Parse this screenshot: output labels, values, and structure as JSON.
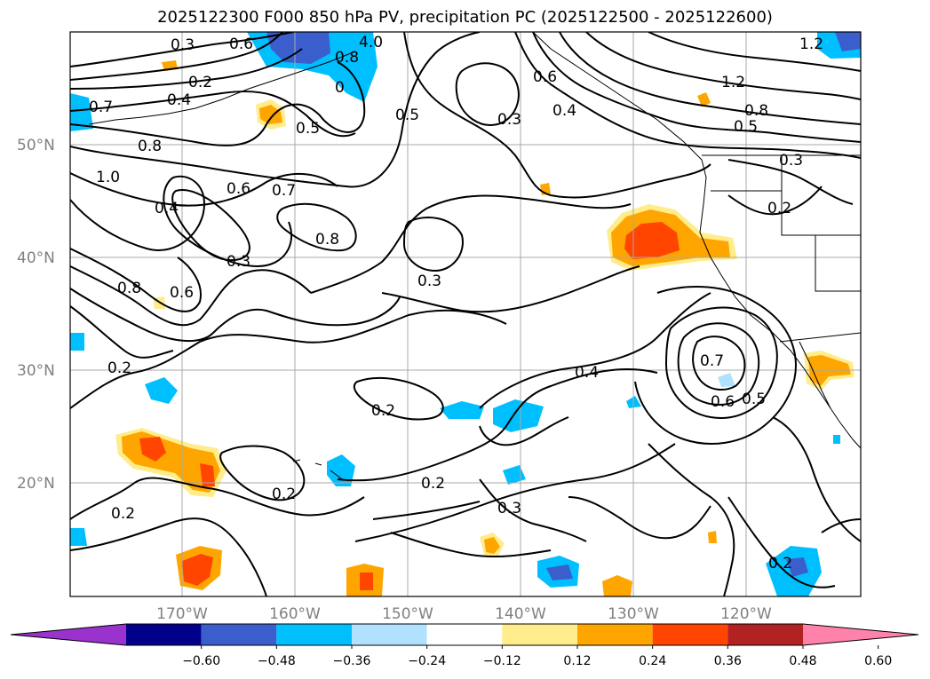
{
  "title": "2025122300 F000 850 hPa PV, precipitation PC (2025122500 - 2025122600)",
  "latitude_labels": [
    "50°N",
    "40°N",
    "30°N",
    "20°N"
  ],
  "longitude_labels": [
    "170°W",
    "160°W",
    "150°W",
    "140°W",
    "130°W",
    "120°W"
  ],
  "contour_labels": [
    "0.3",
    "0.2",
    "0.6",
    "4.0",
    "0.8",
    "0",
    "0.7",
    "0.4",
    "0.5",
    "0.8",
    "1.0",
    "0.6",
    "0.7",
    "0.4",
    "0.8",
    "0.3",
    "0.8",
    "0.6",
    "0.2",
    "0.3",
    "0.5",
    "0.3",
    "0.6",
    "0.4",
    "1.2",
    "1.2",
    "0.8",
    "0.5",
    "0.3",
    "0.2",
    "0.4",
    "0.2",
    "0.2",
    "0.3",
    "0.2",
    "0.7",
    "0.6",
    "0.5",
    "0.2",
    "0.2"
  ],
  "colorbar": {
    "ticks": [
      "−0.60",
      "−0.48",
      "−0.36",
      "−0.24",
      "−0.12",
      "0.12",
      "0.24",
      "0.36",
      "0.48",
      "0.60"
    ],
    "colors": [
      "#9a32cd",
      "#00008b",
      "#3a5fcd",
      "#00bfff",
      "#b0e2ff",
      "#ffffff",
      "#ffec8b",
      "#ffa500",
      "#ff4500",
      "#b22222",
      "#ff82ab"
    ]
  }
}
